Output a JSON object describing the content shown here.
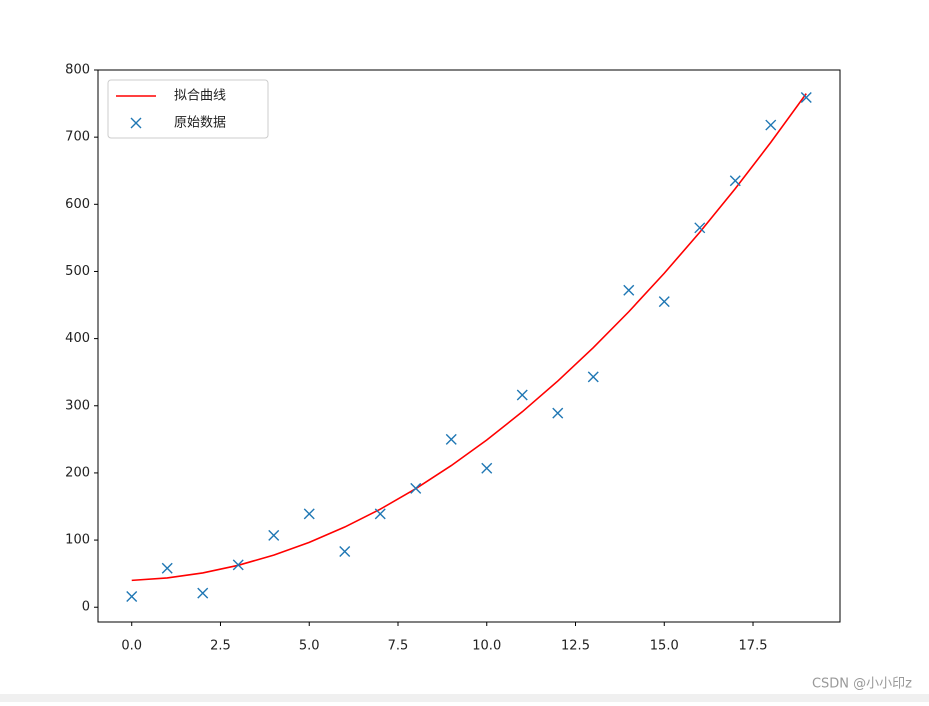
{
  "chart_data": {
    "type": "line",
    "x": [
      0,
      1,
      2,
      3,
      4,
      5,
      6,
      7,
      8,
      9,
      10,
      11,
      12,
      13,
      14,
      15,
      16,
      17,
      18,
      19
    ],
    "series": [
      {
        "name": "拟合曲线",
        "color": "#ff0000",
        "type": "line",
        "values": [
          40.0,
          43.6,
          51.1,
          62.4,
          77.6,
          96.6,
          119.4,
          146.0,
          176.5,
          210.9,
          249.0,
          291.0,
          336.8,
          386.5,
          440.0,
          497.3,
          558.4,
          623.4,
          692.2,
          764.8
        ]
      },
      {
        "name": "原始数据",
        "color": "#1f77b4",
        "type": "scatter",
        "marker": "x",
        "values": [
          16,
          58,
          21,
          63,
          107,
          139,
          83,
          139,
          177,
          250,
          207,
          316,
          289,
          343,
          472,
          455,
          565,
          635,
          718,
          759
        ]
      }
    ],
    "xlim": [
      -0.95,
      19.95
    ],
    "ylim": [
      -22,
      800
    ],
    "xticks": [
      {
        "value": 0,
        "label": "0.0"
      },
      {
        "value": 2.5,
        "label": "2.5"
      },
      {
        "value": 5,
        "label": "5.0"
      },
      {
        "value": 7.5,
        "label": "7.5"
      },
      {
        "value": 10,
        "label": "10.0"
      },
      {
        "value": 12.5,
        "label": "12.5"
      },
      {
        "value": 15,
        "label": "15.0"
      },
      {
        "value": 17.5,
        "label": "17.5"
      }
    ],
    "yticks": [
      0,
      100,
      200,
      300,
      400,
      500,
      600,
      700,
      800
    ],
    "legend": "upper left",
    "grid": false
  },
  "watermark": "CSDN @小小印z"
}
